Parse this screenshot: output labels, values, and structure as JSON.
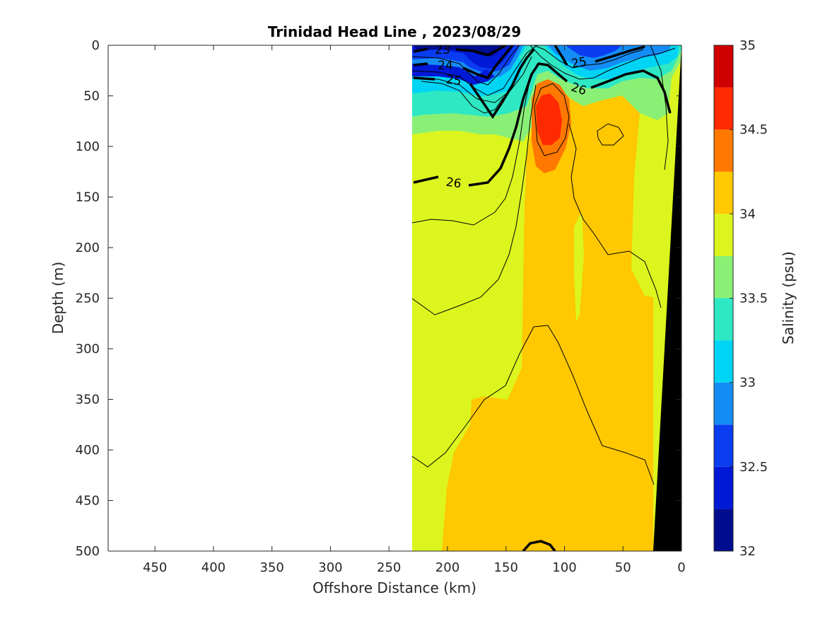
{
  "chart_data": {
    "type": "contourf",
    "title": "Trinidad Head Line , 2023/08/29",
    "xlabel": "Offshore Distance (km)",
    "ylabel": "Depth (m)",
    "colorbar_label": "Salinity (psu)",
    "xlim": [
      490,
      0
    ],
    "ylim": [
      0,
      500
    ],
    "y_reversed": true,
    "x_reversed": true,
    "x_ticks": [
      "450",
      "400",
      "350",
      "300",
      "250",
      "200",
      "150",
      "100",
      "50",
      "0"
    ],
    "y_ticks": [
      "0",
      "50",
      "100",
      "150",
      "200",
      "250",
      "300",
      "350",
      "400",
      "450",
      "500"
    ],
    "colorbar_ticks": [
      "35",
      "34.5",
      "34",
      "33.5",
      "33",
      "32.5",
      "32"
    ],
    "colorbar_range": [
      32,
      35
    ],
    "colorbar_levels": [
      {
        "from": 32.0,
        "to": 32.25,
        "color": "#000d8f"
      },
      {
        "from": 32.25,
        "to": 32.5,
        "color": "#0019d6"
      },
      {
        "from": 32.5,
        "to": 32.75,
        "color": "#0a3cf0"
      },
      {
        "from": 32.75,
        "to": 33.0,
        "color": "#148cf5"
      },
      {
        "from": 33.0,
        "to": 33.25,
        "color": "#00d4f5"
      },
      {
        "from": 33.25,
        "to": 33.5,
        "color": "#2ee8c4"
      },
      {
        "from": 33.5,
        "to": 33.75,
        "color": "#8af075"
      },
      {
        "from": 33.75,
        "to": 34.0,
        "color": "#dcf51e"
      },
      {
        "from": 34.0,
        "to": 34.25,
        "color": "#ffc800"
      },
      {
        "from": 34.25,
        "to": 34.5,
        "color": "#ff7800"
      },
      {
        "from": 34.5,
        "to": 34.75,
        "color": "#ff2a00"
      },
      {
        "from": 34.75,
        "to": 35.0,
        "color": "#d10000"
      }
    ],
    "data_extent_km": [
      230,
      0
    ],
    "density_contour_labels": [
      "23",
      "24",
      "25",
      "25",
      "26",
      "26"
    ],
    "bottom_fill_color": "#000000"
  }
}
